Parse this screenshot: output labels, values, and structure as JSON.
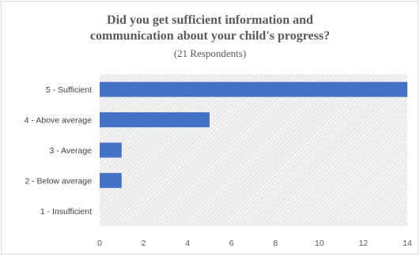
{
  "chart_data": {
    "type": "bar",
    "orientation": "horizontal",
    "title_line1": "Did you get sufficient information and",
    "title_line2": "communication about your child's progress?",
    "subtitle": "(21 Respondents)",
    "categories": [
      "5 - Sufficient",
      "4 - Above average",
      "3 - Average",
      "2 - Below average",
      "1 - Insufficient"
    ],
    "values": [
      14,
      5,
      1,
      1,
      0
    ],
    "xlim": [
      0,
      14
    ],
    "xticks": [
      0,
      2,
      4,
      6,
      8,
      10,
      12,
      14
    ],
    "bar_color": "#4472c4",
    "plot_background": "hatched-gray",
    "grid": false
  }
}
